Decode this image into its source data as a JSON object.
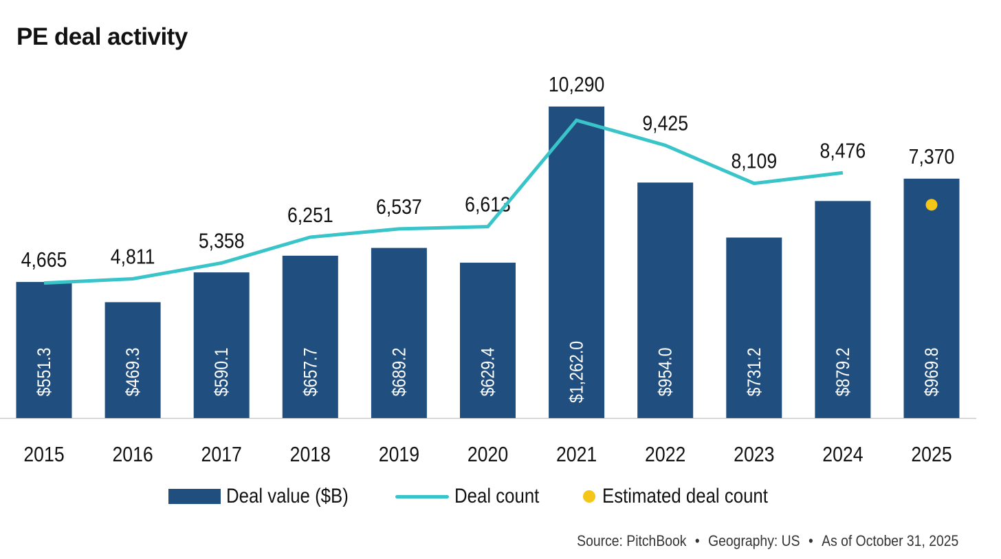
{
  "chart_data": {
    "type": "bar",
    "title": "PE deal activity",
    "categories": [
      "2015",
      "2016",
      "2017",
      "2018",
      "2019",
      "2020",
      "2021",
      "2022",
      "2023",
      "2024",
      "2025"
    ],
    "series": [
      {
        "name": "Deal value ($B)",
        "kind": "bar",
        "values": [
          551.3,
          469.3,
          590.1,
          657.7,
          689.2,
          629.4,
          1262.0,
          954.0,
          731.2,
          879.2,
          969.8
        ],
        "labels": [
          "$551.3",
          "$469.3",
          "$590.1",
          "$657.7",
          "$689.2",
          "$629.4",
          "$1,262.0",
          "$954.0",
          "$731.2",
          "$879.2",
          "$969.8"
        ],
        "color": "#1F4E7F",
        "ylim": [
          0,
          1415
        ]
      },
      {
        "name": "Deal count",
        "kind": "line",
        "values": [
          4665,
          4811,
          5358,
          6251,
          6537,
          6613,
          10290,
          9425,
          8109,
          8476,
          null
        ],
        "color": "#38C4C8",
        "ylim": [
          0,
          12070
        ]
      },
      {
        "name": "Estimated deal count",
        "kind": "point",
        "values": [
          null,
          null,
          null,
          null,
          null,
          null,
          null,
          null,
          null,
          null,
          7370
        ],
        "color": "#F5C518",
        "ylim": [
          0,
          12070
        ]
      }
    ],
    "count_labels": [
      "4,665",
      "4,811",
      "5,358",
      "6,251",
      "6,537",
      "6,613",
      "10,290",
      "9,425",
      "8,109",
      "8,476",
      "7,370"
    ],
    "legend_position": "bottom",
    "grid": false
  },
  "footer": {
    "source": "Source: PitchBook",
    "separator": "•",
    "geography": "Geography: US",
    "asof": "As of October 31, 2025"
  }
}
